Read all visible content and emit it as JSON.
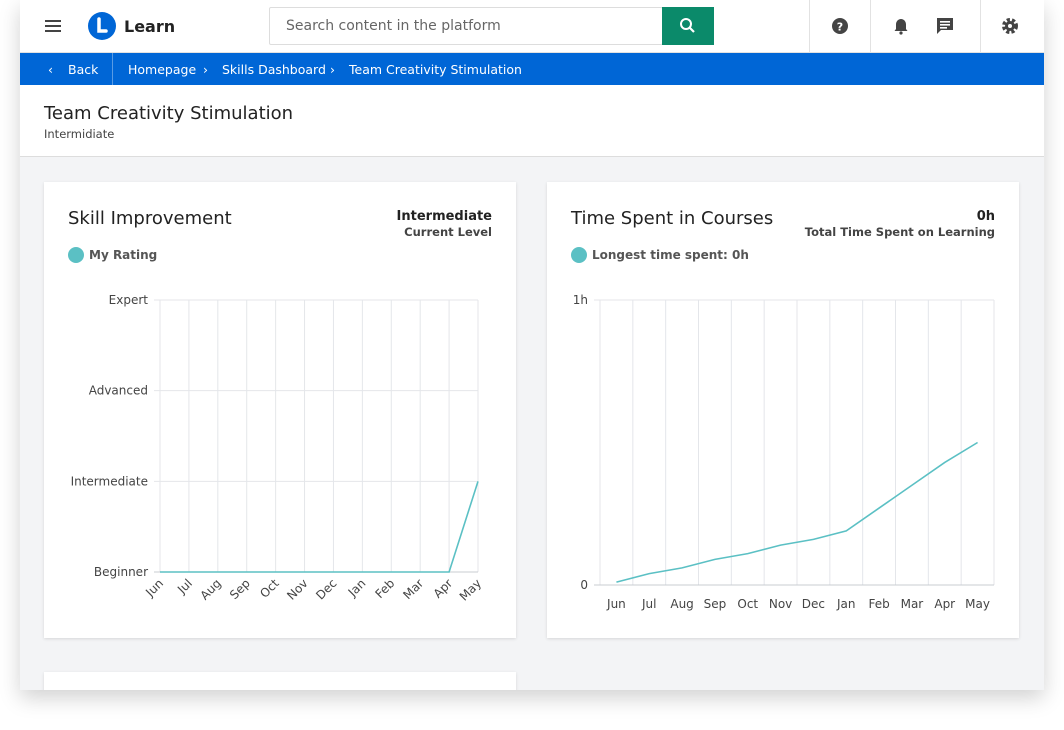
{
  "header": {
    "app_name": "Learn",
    "search_placeholder": "Search content in the platform"
  },
  "breadcrumb": {
    "back": "Back",
    "items": [
      "Homepage",
      "Skills Dashboard",
      "Team Creativity Stimulation"
    ]
  },
  "page": {
    "title": "Team Creativity Stimulation",
    "subtitle": "Intermidiate"
  },
  "chart_data": [
    {
      "type": "line",
      "title": "Skill Improvement",
      "stat_value": "Intermediate",
      "stat_label": "Current Level",
      "categories": [
        "Jun",
        "Jul",
        "Aug",
        "Sep",
        "Oct",
        "Nov",
        "Dec",
        "Jan",
        "Feb",
        "Mar",
        "Apr",
        "May"
      ],
      "series": [
        {
          "name": "My Rating",
          "color": "#5bc0c4",
          "values": [
            0,
            0,
            0,
            0,
            0,
            0,
            0,
            0,
            0,
            0,
            0,
            1
          ]
        }
      ],
      "ylim": [
        0,
        3
      ],
      "yticks": [
        {
          "value": 0,
          "label": "Beginner"
        },
        {
          "value": 1,
          "label": "Intermediate"
        },
        {
          "value": 2,
          "label": "Advanced"
        },
        {
          "value": 3,
          "label": "Expert"
        }
      ],
      "grid": true
    },
    {
      "type": "line",
      "title": "Time Spent in Courses",
      "stat_value": "0h",
      "stat_label": "Total Time Spent on Learning",
      "categories": [
        "Jun",
        "Jul",
        "Aug",
        "Sep",
        "Oct",
        "Nov",
        "Dec",
        "Jan",
        "Feb",
        "Mar",
        "Apr",
        "May"
      ],
      "series": [
        {
          "name": "Longest time spent: 0h",
          "color": "#5bc0c4",
          "values": [
            0.01,
            0.04,
            0.06,
            0.09,
            0.11,
            0.14,
            0.16,
            0.19,
            0.27,
            0.35,
            0.43,
            0.5
          ]
        }
      ],
      "ylim": [
        0,
        1
      ],
      "yticks": [
        0,
        {
          "value": 1,
          "label": "1h"
        }
      ],
      "grid": true
    }
  ]
}
